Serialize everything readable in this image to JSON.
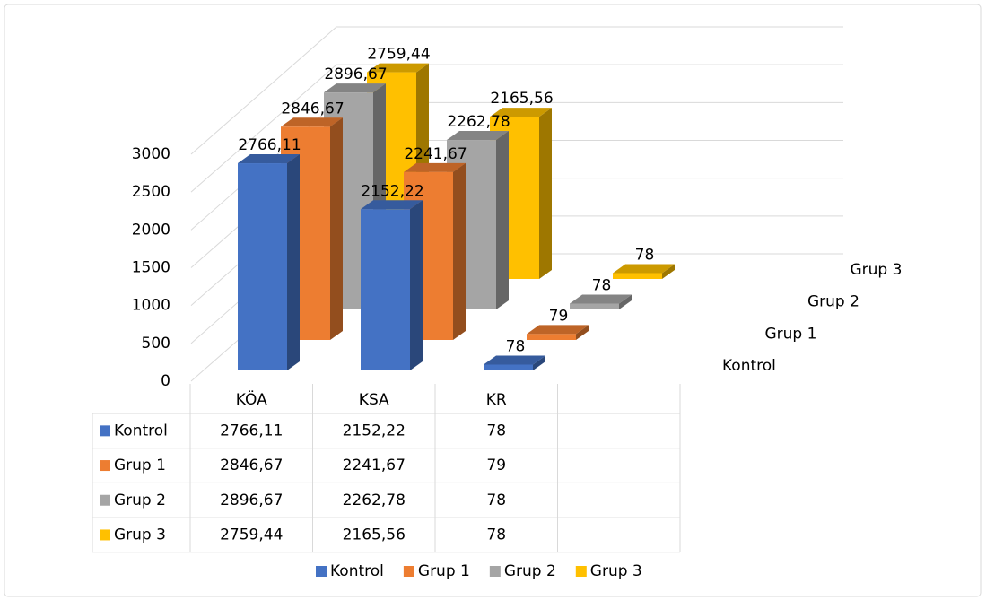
{
  "chart_data": {
    "type": "bar3d",
    "categories": [
      "KÖA",
      "KSA",
      "KR"
    ],
    "series": [
      {
        "name": "Kontrol",
        "color": "#4472c4",
        "values": [
          2766.11,
          2152.22,
          78
        ],
        "value_labels": [
          "2766,11",
          "2152,22",
          "78"
        ]
      },
      {
        "name": "Grup 1",
        "color": "#ed7d31",
        "values": [
          2846.67,
          2241.67,
          79
        ],
        "value_labels": [
          "2846,67",
          "2241,67",
          "79"
        ]
      },
      {
        "name": "Grup 2",
        "color": "#a5a5a5",
        "values": [
          2896.67,
          2262.78,
          78
        ],
        "value_labels": [
          "2896,67",
          "2262,78",
          "78"
        ]
      },
      {
        "name": "Grup 3",
        "color": "#ffc000",
        "values": [
          2759.44,
          2165.56,
          78
        ],
        "value_labels": [
          "2759,44",
          "2165,56",
          "78"
        ]
      }
    ],
    "ylim": [
      0,
      3000
    ],
    "yticks": [
      0,
      500,
      1000,
      1500,
      2000,
      2500,
      3000
    ],
    "grid": true
  }
}
